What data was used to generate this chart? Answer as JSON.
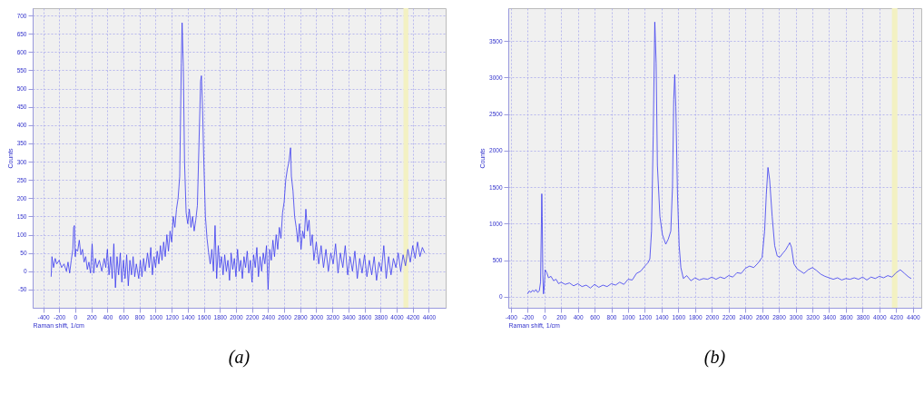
{
  "chart_data": [
    {
      "type": "line",
      "title": "(a)",
      "xlabel": "Raman shift, 1/cm",
      "ylabel": "Counts",
      "grid": true,
      "xlim": [
        -530,
        4610
      ],
      "xticks": [
        -400,
        -200,
        0,
        200,
        400,
        600,
        800,
        1000,
        1200,
        1400,
        1600,
        1800,
        2000,
        2200,
        2400,
        2600,
        2800,
        3000,
        3200,
        3400,
        3600,
        3800,
        4000,
        4200,
        4400
      ],
      "ylim": [
        -100,
        720
      ],
      "yticks": [
        -50,
        0,
        50,
        100,
        150,
        200,
        250,
        300,
        350,
        400,
        450,
        500,
        550,
        600,
        650,
        700
      ],
      "bands": [
        {
          "axis": "x",
          "from": 4085,
          "to": 4145,
          "color": "#f3f1c2"
        }
      ],
      "x": [
        -300,
        -290,
        -270,
        -250,
        -230,
        -200,
        -170,
        -140,
        -110,
        -90,
        -70,
        -50,
        -30,
        -20,
        -10,
        0,
        10,
        30,
        50,
        70,
        90,
        110,
        130,
        150,
        170,
        190,
        210,
        230,
        250,
        270,
        300,
        330,
        360,
        380,
        400,
        420,
        440,
        460,
        480,
        500,
        520,
        540,
        560,
        580,
        600,
        620,
        640,
        660,
        680,
        700,
        720,
        740,
        760,
        790,
        810,
        830,
        850,
        870,
        900,
        920,
        940,
        960,
        980,
        1000,
        1020,
        1040,
        1060,
        1080,
        1100,
        1120,
        1140,
        1160,
        1180,
        1200,
        1220,
        1240,
        1260,
        1280,
        1300,
        1320,
        1330,
        1345,
        1360,
        1380,
        1400,
        1420,
        1440,
        1460,
        1480,
        1500,
        1520,
        1540,
        1560,
        1570,
        1585,
        1600,
        1620,
        1640,
        1660,
        1680,
        1700,
        1720,
        1740,
        1760,
        1780,
        1800,
        1820,
        1840,
        1860,
        1880,
        1900,
        1920,
        1940,
        1960,
        1980,
        2000,
        2020,
        2040,
        2060,
        2080,
        2100,
        2120,
        2140,
        2160,
        2180,
        2200,
        2220,
        2240,
        2260,
        2280,
        2300,
        2320,
        2340,
        2360,
        2380,
        2400,
        2420,
        2440,
        2460,
        2480,
        2500,
        2520,
        2540,
        2560,
        2580,
        2600,
        2620,
        2640,
        2660,
        2680,
        2690,
        2710,
        2730,
        2750,
        2770,
        2790,
        2810,
        2830,
        2850,
        2870,
        2890,
        2910,
        2930,
        2950,
        2970,
        3000,
        3030,
        3060,
        3090,
        3120,
        3150,
        3180,
        3210,
        3240,
        3270,
        3300,
        3330,
        3360,
        3390,
        3420,
        3450,
        3480,
        3510,
        3540,
        3570,
        3600,
        3630,
        3660,
        3690,
        3720,
        3750,
        3780,
        3810,
        3840,
        3870,
        3900,
        3930,
        3960,
        3990,
        4020,
        4050,
        4080,
        4110,
        4140,
        4170,
        4200,
        4230,
        4260,
        4290,
        4320,
        4350
      ],
      "series": [
        {
          "color": "#3a3af0",
          "values": [
            -15,
            40,
            10,
            35,
            20,
            30,
            10,
            20,
            0,
            25,
            -5,
            30,
            60,
            120,
            125,
            40,
            60,
            55,
            85,
            45,
            60,
            25,
            40,
            5,
            25,
            -5,
            75,
            -5,
            35,
            10,
            30,
            0,
            35,
            10,
            60,
            -10,
            40,
            -20,
            75,
            -45,
            40,
            -10,
            50,
            -30,
            30,
            -20,
            45,
            -40,
            30,
            -10,
            40,
            -15,
            20,
            -20,
            30,
            -15,
            35,
            0,
            50,
            10,
            65,
            -10,
            40,
            10,
            55,
            20,
            70,
            30,
            80,
            40,
            100,
            55,
            110,
            80,
            150,
            120,
            170,
            200,
            260,
            570,
            680,
            560,
            300,
            160,
            130,
            170,
            120,
            150,
            110,
            140,
            180,
            350,
            520,
            535,
            440,
            300,
            150,
            90,
            50,
            20,
            60,
            0,
            125,
            -20,
            70,
            10,
            40,
            -10,
            45,
            0,
            30,
            -25,
            50,
            5,
            35,
            -15,
            60,
            0,
            30,
            -20,
            40,
            10,
            55,
            -5,
            30,
            -30,
            45,
            10,
            65,
            -15,
            40,
            0,
            50,
            20,
            70,
            -50,
            60,
            30,
            85,
            40,
            100,
            60,
            120,
            90,
            160,
            190,
            250,
            280,
            300,
            338,
            260,
            220,
            150,
            120,
            80,
            130,
            60,
            110,
            90,
            170,
            110,
            140,
            70,
            100,
            30,
            80,
            20,
            70,
            10,
            60,
            0,
            50,
            20,
            75,
            -5,
            50,
            10,
            70,
            -10,
            40,
            0,
            55,
            -20,
            35,
            -5,
            45,
            -15,
            30,
            -10,
            40,
            -25,
            25,
            0,
            70,
            -20,
            40,
            -10,
            35,
            10,
            50,
            0,
            45,
            15,
            60,
            25,
            70,
            35,
            80,
            40,
            65,
            50
          ]
        }
      ]
    },
    {
      "type": "line",
      "title": "(b)",
      "xlabel": "Raman shift, 1/cm",
      "ylabel": "Counts",
      "grid": true,
      "xlim": [
        -430,
        4500
      ],
      "xticks": [
        -400,
        -200,
        0,
        200,
        400,
        600,
        800,
        1000,
        1200,
        1400,
        1600,
        1800,
        2000,
        2200,
        2400,
        2600,
        2800,
        3000,
        3200,
        3400,
        3600,
        3800,
        4000,
        4200,
        4400
      ],
      "ylim": [
        -150,
        3950
      ],
      "yticks": [
        0,
        500,
        1000,
        1500,
        2000,
        2500,
        3000,
        3500
      ],
      "bands": [
        {
          "axis": "x",
          "from": 4150,
          "to": 4215,
          "color": "#f3f1c2"
        }
      ],
      "x": [
        -200,
        -180,
        -160,
        -140,
        -120,
        -100,
        -80,
        -60,
        -45,
        -35,
        -30,
        -25,
        -18,
        -10,
        0,
        10,
        30,
        50,
        80,
        110,
        140,
        170,
        200,
        250,
        300,
        350,
        400,
        450,
        500,
        550,
        600,
        650,
        700,
        750,
        800,
        850,
        900,
        950,
        1000,
        1050,
        1100,
        1150,
        1200,
        1240,
        1260,
        1280,
        1300,
        1319,
        1335,
        1350,
        1380,
        1410,
        1450,
        1480,
        1510,
        1530,
        1545,
        1557,
        1570,
        1590,
        1610,
        1630,
        1660,
        1700,
        1750,
        1800,
        1850,
        1900,
        1950,
        2000,
        2050,
        2100,
        2150,
        2200,
        2250,
        2300,
        2350,
        2400,
        2450,
        2500,
        2550,
        2600,
        2630,
        2650,
        2670,
        2690,
        2720,
        2750,
        2780,
        2810,
        2850,
        2880,
        2910,
        2930,
        2950,
        2980,
        3020,
        3060,
        3100,
        3150,
        3200,
        3250,
        3300,
        3350,
        3400,
        3450,
        3500,
        3550,
        3600,
        3650,
        3700,
        3750,
        3800,
        3850,
        3900,
        3950,
        4000,
        4050,
        4100,
        4150,
        4200,
        4250,
        4300,
        4350,
        4380
      ],
      "series": [
        {
          "color": "#3a3af0",
          "values": [
            40,
            80,
            60,
            90,
            70,
            100,
            60,
            80,
            200,
            1000,
            1410,
            1100,
            300,
            40,
            150,
            370,
            330,
            260,
            280,
            220,
            240,
            180,
            200,
            170,
            190,
            150,
            180,
            140,
            160,
            120,
            170,
            130,
            160,
            140,
            180,
            160,
            200,
            170,
            240,
            230,
            320,
            350,
            420,
            470,
            520,
            900,
            2200,
            3760,
            3200,
            1800,
            1100,
            850,
            720,
            790,
            900,
            1500,
            2700,
            3040,
            2600,
            1400,
            700,
            400,
            250,
            290,
            220,
            260,
            230,
            250,
            240,
            270,
            240,
            270,
            250,
            290,
            270,
            330,
            320,
            390,
            420,
            400,
            460,
            540,
            900,
            1400,
            1770,
            1600,
            1100,
            700,
            560,
            540,
            600,
            640,
            700,
            740,
            680,
            450,
            380,
            350,
            320,
            370,
            400,
            360,
            310,
            280,
            260,
            240,
            260,
            230,
            250,
            240,
            260,
            240,
            270,
            230,
            270,
            250,
            280,
            260,
            290,
            270,
            330,
            370,
            320,
            270,
            250
          ]
        }
      ]
    }
  ]
}
